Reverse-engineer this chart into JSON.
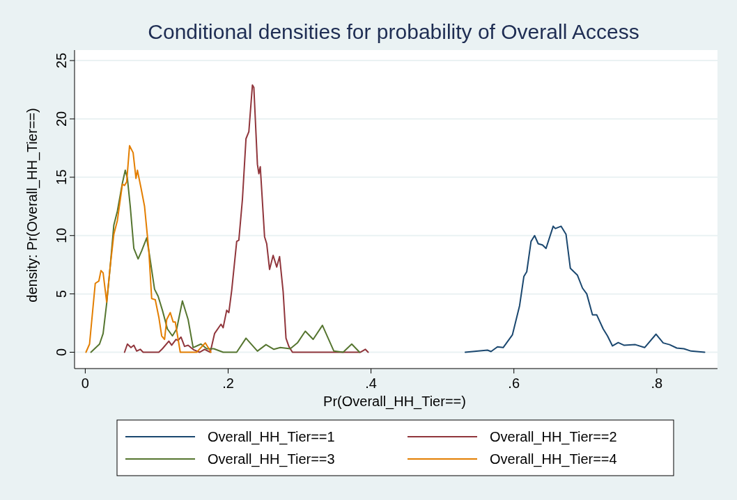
{
  "chart_data": {
    "type": "line",
    "title": "Conditional densities for probability of Overall Access",
    "xlabel": "Pr(Overall_HH_Tier==)",
    "ylabel": "density: Pr(Overall_HH_Tier==)",
    "xlim": [
      -0.015,
      0.885
    ],
    "ylim": [
      -1.4,
      25.9
    ],
    "xticks": [
      0,
      {
        "value": 0.2,
        "label": ".2"
      },
      {
        "value": 0.4,
        "label": ".4"
      },
      {
        "value": 0.6,
        "label": ".6"
      },
      {
        "value": 0.8,
        "label": ".8"
      }
    ],
    "yticks": [
      0,
      5,
      10,
      15,
      20,
      25
    ],
    "grid": "y",
    "legend": "bottom",
    "marker": "none",
    "line_style": "solid",
    "series": [
      {
        "name": "Overall_HH_Tier==1",
        "color": "#1a476f",
        "x": [
          0.532,
          0.563,
          0.568,
          0.577,
          0.585,
          0.598,
          0.608,
          0.614,
          0.618,
          0.624,
          0.629,
          0.634,
          0.64,
          0.645,
          0.655,
          0.658,
          0.666,
          0.673,
          0.679,
          0.689,
          0.696,
          0.702,
          0.71,
          0.716,
          0.725,
          0.731,
          0.738,
          0.746,
          0.754,
          0.77,
          0.783,
          0.799,
          0.809,
          0.818,
          0.828,
          0.838,
          0.848,
          0.867
        ],
        "values": [
          0,
          0.18,
          0.06,
          0.46,
          0.4,
          1.5,
          4.0,
          6.5,
          6.9,
          9.5,
          10.0,
          9.3,
          9.2,
          8.9,
          10.8,
          10.6,
          10.8,
          10.1,
          7.2,
          6.6,
          5.5,
          5.0,
          3.2,
          3.2,
          2.0,
          1.4,
          0.54,
          0.83,
          0.6,
          0.65,
          0.4,
          1.55,
          0.8,
          0.65,
          0.36,
          0.3,
          0.1,
          0
        ]
      },
      {
        "name": "Overall_HH_Tier==2",
        "color": "#90353b",
        "x": [
          0.055,
          0.059,
          0.064,
          0.068,
          0.072,
          0.077,
          0.081,
          0.103,
          0.108,
          0.117,
          0.121,
          0.127,
          0.13,
          0.134,
          0.139,
          0.144,
          0.152,
          0.16,
          0.167,
          0.175,
          0.181,
          0.19,
          0.193,
          0.198,
          0.201,
          0.205,
          0.212,
          0.215,
          0.22,
          0.225,
          0.229,
          0.234,
          0.236,
          0.241,
          0.243,
          0.245,
          0.251,
          0.254,
          0.258,
          0.263,
          0.268,
          0.272,
          0.277,
          0.281,
          0.285,
          0.29,
          0.385,
          0.392,
          0.396
        ],
        "values": [
          0,
          0.7,
          0.4,
          0.6,
          0.1,
          0.25,
          0,
          0,
          0.3,
          0.95,
          0.6,
          1.1,
          1.0,
          1.3,
          0.5,
          0.6,
          0.2,
          0,
          0.25,
          0,
          1.6,
          2.4,
          2.1,
          3.6,
          3.4,
          5.3,
          9.5,
          9.6,
          13.1,
          18.3,
          18.9,
          22.9,
          22.7,
          16.1,
          15.3,
          15.9,
          9.9,
          9.3,
          7.1,
          8.3,
          7.3,
          8.2,
          5.2,
          1.2,
          0.5,
          0,
          0,
          0.25,
          0
        ]
      },
      {
        "name": "Overall_HH_Tier==3",
        "color": "#55752f",
        "x": [
          0.008,
          0.02,
          0.025,
          0.03,
          0.035,
          0.04,
          0.045,
          0.052,
          0.056,
          0.059,
          0.063,
          0.068,
          0.074,
          0.079,
          0.086,
          0.09,
          0.097,
          0.102,
          0.108,
          0.115,
          0.122,
          0.128,
          0.136,
          0.144,
          0.151,
          0.162,
          0.17,
          0.18,
          0.193,
          0.212,
          0.225,
          0.241,
          0.253,
          0.264,
          0.273,
          0.287,
          0.297,
          0.308,
          0.319,
          0.332,
          0.348,
          0.361,
          0.373,
          0.384
        ],
        "values": [
          0,
          0.7,
          1.6,
          4.2,
          7.4,
          10.9,
          12.1,
          14.5,
          15.6,
          14.9,
          12.5,
          8.9,
          8.0,
          8.7,
          9.8,
          8.3,
          5.4,
          4.8,
          3.6,
          2.0,
          1.4,
          2.0,
          4.4,
          2.8,
          0.4,
          0.7,
          0.3,
          0.3,
          0,
          0,
          1.2,
          0.1,
          0.65,
          0.25,
          0.4,
          0.3,
          0.8,
          1.8,
          1.1,
          2.3,
          0.1,
          0,
          0.7,
          0
        ]
      },
      {
        "name": "Overall_HH_Tier==4",
        "color": "#e37e00",
        "x": [
          0.001,
          0.006,
          0.014,
          0.019,
          0.022,
          0.025,
          0.03,
          0.035,
          0.04,
          0.045,
          0.052,
          0.055,
          0.058,
          0.062,
          0.067,
          0.071,
          0.073,
          0.078,
          0.083,
          0.089,
          0.093,
          0.098,
          0.103,
          0.107,
          0.111,
          0.114,
          0.119,
          0.123,
          0.126,
          0.133,
          0.156,
          0.168,
          0.176
        ],
        "values": [
          0,
          0.7,
          5.9,
          6.1,
          7.0,
          6.8,
          4.3,
          7.4,
          10.1,
          11.3,
          14.4,
          14.3,
          14.6,
          17.7,
          17.1,
          14.9,
          15.6,
          14.1,
          12.5,
          8.7,
          4.6,
          4.5,
          3.0,
          1.4,
          1.1,
          2.8,
          3.4,
          2.6,
          2.6,
          0,
          0,
          0.8,
          0
        ]
      }
    ]
  }
}
